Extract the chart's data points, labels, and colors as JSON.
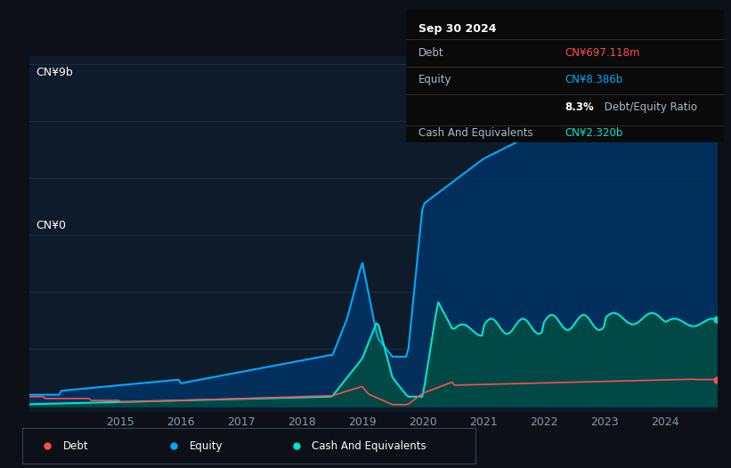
{
  "bg_color": "#0d1117",
  "plot_bg_color": "#0d1b2a",
  "grid_color": "#1e2d3d",
  "title_box": {
    "date": "Sep 30 2024",
    "debt_label": "Debt",
    "debt_value": "CN¥697.118m",
    "debt_color": "#ff4d4d",
    "equity_label": "Equity",
    "equity_value": "CN¥8.386b",
    "equity_color": "#00aaff",
    "ratio_bold": "8.3%",
    "ratio_rest": " Debt/Equity Ratio",
    "cash_label": "Cash And Equivalents",
    "cash_value": "CN¥2.320b",
    "cash_color": "#00e5cc"
  },
  "y_label_top": "CN¥9b",
  "y_label_bottom": "CN¥0",
  "x_ticks": [
    2015,
    2016,
    2017,
    2018,
    2019,
    2020,
    2021,
    2022,
    2023,
    2024
  ],
  "equity_color": "#00aaff",
  "debt_color": "#ff4d4d",
  "cash_color": "#00e5cc",
  "equity_fill_color": "#003366",
  "cash_fill_color": "#004d44",
  "legend": [
    {
      "label": "Debt",
      "color": "#ff4d4d"
    },
    {
      "label": "Equity",
      "color": "#00aaff"
    },
    {
      "label": "Cash And Equivalents",
      "color": "#00e5cc"
    }
  ]
}
